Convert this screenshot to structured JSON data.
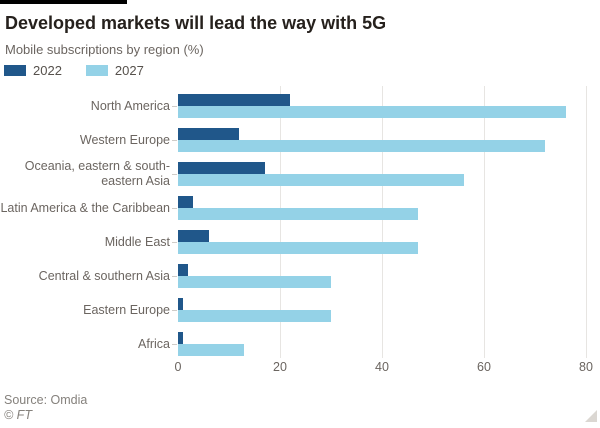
{
  "header": {
    "title": "Developed markets will lead the way with 5G",
    "subtitle": "Mobile subscriptions by region (%)"
  },
  "chart_data": {
    "type": "bar",
    "orientation": "horizontal",
    "title": "Developed markets will lead the way with 5G",
    "subtitle": "Mobile subscriptions by region (%)",
    "categories": [
      "North America",
      "Western Europe",
      "Oceania, eastern & south-eastern Asia",
      "Latin America & the Caribbean",
      "Middle East",
      "Central & southern Asia",
      "Eastern Europe",
      "Africa"
    ],
    "series": [
      {
        "name": "2022",
        "color": "#20578a",
        "values": [
          22,
          12,
          17,
          3,
          6,
          2,
          1,
          1
        ]
      },
      {
        "name": "2027",
        "color": "#94d2e7",
        "values": [
          76,
          72,
          56,
          47,
          47,
          30,
          30,
          13
        ]
      }
    ],
    "xlabel": "",
    "ylabel": "",
    "xlim": [
      0,
      80
    ],
    "xticks": [
      0,
      20,
      40,
      60,
      80
    ],
    "grid": true,
    "legend_position": "top-left"
  },
  "footer": {
    "source": "Source: Omdia",
    "credit": "© FT"
  },
  "colors": {
    "accent_bar": "#000000",
    "title_text": "#26211d",
    "muted_text": "#6b6560",
    "gridline": "#e7e5e2",
    "background": "#ffffff"
  }
}
